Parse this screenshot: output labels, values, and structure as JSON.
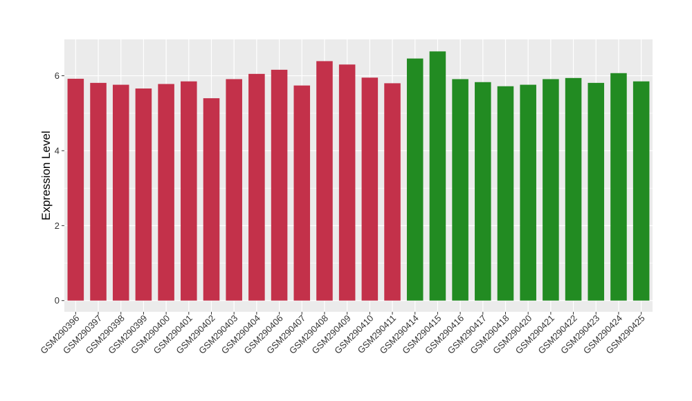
{
  "chart_data": {
    "type": "bar",
    "xlabel": "",
    "ylabel": "Expression Level",
    "ylim": [
      -0.3,
      6.97
    ],
    "yticks": [
      0,
      2,
      4,
      6
    ],
    "grid": true,
    "legend": "none",
    "colors": {
      "group_1": "#c3314a",
      "group_2": "#228b22",
      "panel_bg": "#ebebeb",
      "grid": "#ffffff"
    },
    "categories": [
      "GSM290396",
      "GSM290397",
      "GSM290398",
      "GSM290399",
      "GSM290400",
      "GSM290401",
      "GSM290402",
      "GSM290403",
      "GSM290404",
      "GSM290406",
      "GSM290407",
      "GSM290408",
      "GSM290409",
      "GSM290410",
      "GSM290411",
      "GSM290414",
      "GSM290415",
      "GSM290416",
      "GSM290417",
      "GSM290418",
      "GSM290420",
      "GSM290421",
      "GSM290422",
      "GSM290423",
      "GSM290424",
      "GSM290425"
    ],
    "values": [
      5.92,
      5.81,
      5.76,
      5.66,
      5.78,
      5.85,
      5.4,
      5.91,
      6.05,
      6.16,
      5.74,
      6.39,
      6.3,
      5.95,
      5.8,
      6.46,
      6.65,
      5.91,
      5.83,
      5.72,
      5.76,
      5.91,
      5.94,
      5.81,
      6.07,
      5.85
    ],
    "groups": [
      1,
      1,
      1,
      1,
      1,
      1,
      1,
      1,
      1,
      1,
      1,
      1,
      1,
      1,
      1,
      2,
      2,
      2,
      2,
      2,
      2,
      2,
      2,
      2,
      2,
      2
    ]
  }
}
